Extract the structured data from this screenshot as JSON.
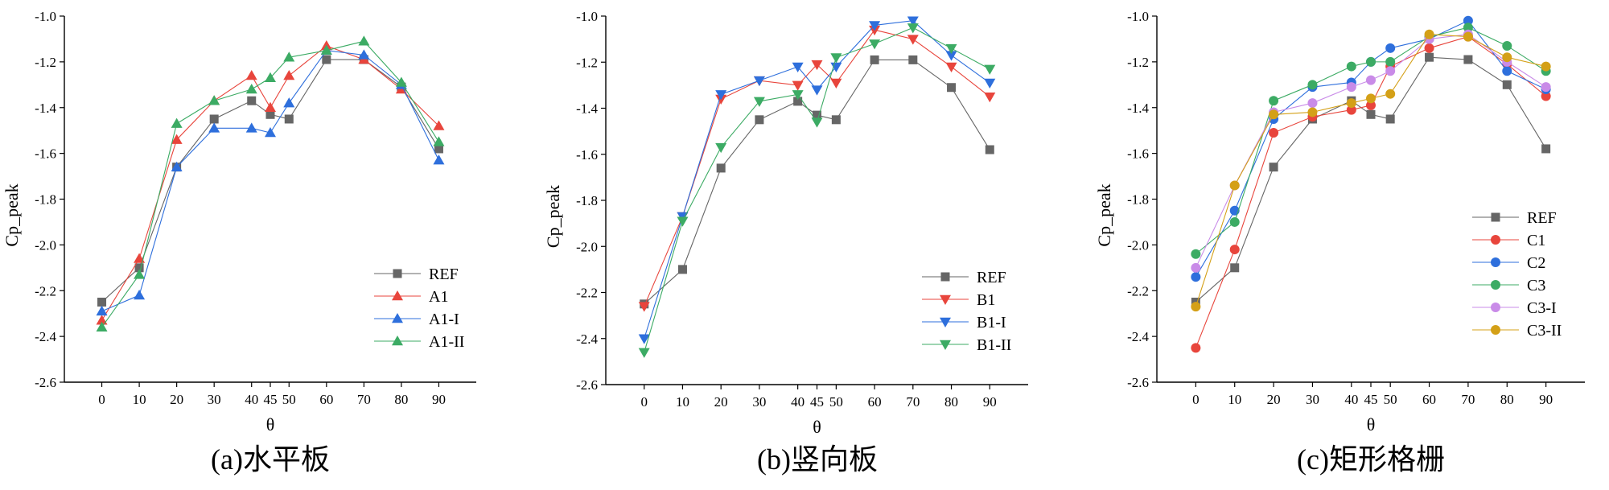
{
  "chart_data": [
    {
      "type": "line",
      "caption": "(a)水平板",
      "xlabel": "θ",
      "ylabel": "Cp_peak",
      "x_ticks": [
        0,
        10,
        20,
        30,
        40,
        45,
        50,
        60,
        70,
        80,
        90
      ],
      "x_ticklabels": [
        "0",
        "10",
        "20",
        "30",
        "40",
        "45",
        "50",
        "60",
        "70",
        "80",
        "90"
      ],
      "y_ticks": [
        -1.0,
        -1.2,
        -1.4,
        -1.6,
        -1.8,
        -2.0,
        -2.2,
        -2.4,
        -2.6
      ],
      "y_ticklabels": [
        "-1.0",
        "-1.2",
        "-1.4",
        "-1.6",
        "-1.8",
        "-2.0",
        "-2.2",
        "-2.4",
        "-2.6"
      ],
      "xlim": [
        -10,
        100
      ],
      "ylim": [
        -2.6,
        -1.0
      ],
      "legend_position": "bottom-right",
      "x": [
        0,
        10,
        20,
        30,
        40,
        45,
        50,
        60,
        70,
        80,
        90
      ],
      "series": [
        {
          "name": "REF",
          "color": "#666666",
          "marker": "square",
          "values": [
            -2.25,
            -2.1,
            -1.66,
            -1.45,
            -1.37,
            -1.43,
            -1.45,
            -1.19,
            -1.19,
            -1.31,
            -1.58
          ]
        },
        {
          "name": "A1",
          "color": "#e8453c",
          "marker": "triangle-up",
          "values": [
            -2.33,
            -2.06,
            -1.54,
            -1.37,
            -1.26,
            -1.4,
            -1.26,
            -1.13,
            -1.19,
            -1.32,
            -1.48
          ]
        },
        {
          "name": "A1-I",
          "color": "#2e6fdc",
          "marker": "triangle-up",
          "values": [
            -2.29,
            -2.22,
            -1.66,
            -1.49,
            -1.49,
            -1.51,
            -1.38,
            -1.15,
            -1.17,
            -1.3,
            -1.63
          ]
        },
        {
          "name": "A1-II",
          "color": "#3cab64",
          "marker": "triangle-up",
          "values": [
            -2.36,
            -2.13,
            -1.47,
            -1.37,
            -1.32,
            -1.27,
            -1.18,
            -1.15,
            -1.11,
            -1.29,
            -1.55
          ]
        }
      ]
    },
    {
      "type": "line",
      "caption": "(b)竖向板",
      "xlabel": "θ",
      "ylabel": "Cp_peak",
      "x_ticks": [
        0,
        10,
        20,
        30,
        40,
        45,
        50,
        60,
        70,
        80,
        90
      ],
      "x_ticklabels": [
        "0",
        "10",
        "20",
        "30",
        "40",
        "45",
        "50",
        "60",
        "70",
        "80",
        "90"
      ],
      "y_ticks": [
        -1.0,
        -1.2,
        -1.4,
        -1.6,
        -1.8,
        -2.0,
        -2.2,
        -2.4,
        -2.6
      ],
      "y_ticklabels": [
        "-1.0",
        "-1.2",
        "-1.4",
        "-1.6",
        "-1.8",
        "-2.0",
        "-2.2",
        "-2.4",
        "-2.6"
      ],
      "xlim": [
        -10,
        100
      ],
      "ylim": [
        -2.6,
        -1.0
      ],
      "legend_position": "bottom-right",
      "x": [
        0,
        10,
        20,
        30,
        40,
        45,
        50,
        60,
        70,
        80,
        90
      ],
      "series": [
        {
          "name": "REF",
          "color": "#666666",
          "marker": "square",
          "values": [
            -2.25,
            -2.1,
            -1.66,
            -1.45,
            -1.37,
            -1.43,
            -1.45,
            -1.19,
            -1.19,
            -1.31,
            -1.58
          ]
        },
        {
          "name": "B1",
          "color": "#e8453c",
          "marker": "triangle-down",
          "values": [
            -2.26,
            -1.87,
            -1.36,
            -1.28,
            -1.3,
            -1.21,
            -1.29,
            -1.06,
            -1.1,
            -1.22,
            -1.35
          ]
        },
        {
          "name": "B1-I",
          "color": "#2e6fdc",
          "marker": "triangle-down",
          "values": [
            -2.4,
            -1.87,
            -1.34,
            -1.28,
            -1.22,
            -1.32,
            -1.22,
            -1.04,
            -1.02,
            -1.17,
            -1.29
          ]
        },
        {
          "name": "B1-II",
          "color": "#3cab64",
          "marker": "triangle-down",
          "values": [
            -2.46,
            -1.89,
            -1.57,
            -1.37,
            -1.34,
            -1.46,
            -1.18,
            -1.12,
            -1.05,
            -1.14,
            -1.23
          ]
        }
      ]
    },
    {
      "type": "line",
      "caption": "(c)矩形格栅",
      "xlabel": "θ",
      "ylabel": "Cp_peak",
      "x_ticks": [
        0,
        10,
        20,
        30,
        40,
        45,
        50,
        60,
        70,
        80,
        90
      ],
      "x_ticklabels": [
        "0",
        "10",
        "20",
        "30",
        "40",
        "45",
        "50",
        "60",
        "70",
        "80",
        "90"
      ],
      "y_ticks": [
        -1.0,
        -1.2,
        -1.4,
        -1.6,
        -1.8,
        -2.0,
        -2.2,
        -2.4,
        -2.6
      ],
      "y_ticklabels": [
        "-1.0",
        "-1.2",
        "-1.4",
        "-1.6",
        "-1.8",
        "-2.0",
        "-2.2",
        "-2.4",
        "-2.6"
      ],
      "xlim": [
        -10,
        100
      ],
      "ylim": [
        -2.6,
        -1.0
      ],
      "legend_position": "bottom-right",
      "x": [
        0,
        10,
        20,
        30,
        40,
        45,
        50,
        60,
        70,
        80,
        90
      ],
      "series": [
        {
          "name": "REF",
          "color": "#666666",
          "marker": "square",
          "values": [
            -2.25,
            -2.1,
            -1.66,
            -1.45,
            -1.37,
            -1.43,
            -1.45,
            -1.18,
            -1.19,
            -1.3,
            -1.58
          ]
        },
        {
          "name": "C1",
          "color": "#e8453c",
          "marker": "circle",
          "values": [
            -2.45,
            -2.02,
            -1.51,
            -1.44,
            -1.41,
            -1.39,
            -1.22,
            -1.14,
            -1.09,
            -1.21,
            -1.35
          ]
        },
        {
          "name": "C2",
          "color": "#2e6fdc",
          "marker": "circle",
          "values": [
            -2.14,
            -1.85,
            -1.45,
            -1.31,
            -1.29,
            -1.2,
            -1.14,
            -1.1,
            -1.02,
            -1.24,
            -1.32
          ]
        },
        {
          "name": "C3",
          "color": "#3cab64",
          "marker": "circle",
          "values": [
            -2.04,
            -1.9,
            -1.37,
            -1.3,
            -1.22,
            -1.2,
            -1.2,
            -1.09,
            -1.05,
            -1.13,
            -1.24
          ]
        },
        {
          "name": "C3-I",
          "color": "#c98be8",
          "marker": "circle",
          "values": [
            -2.1,
            -1.74,
            -1.42,
            -1.38,
            -1.31,
            -1.28,
            -1.24,
            -1.1,
            -1.08,
            -1.2,
            -1.31
          ]
        },
        {
          "name": "C3-II",
          "color": "#d4a017",
          "marker": "circle",
          "values": [
            -2.27,
            -1.74,
            -1.43,
            -1.42,
            -1.38,
            -1.36,
            -1.34,
            -1.08,
            -1.09,
            -1.18,
            -1.22
          ]
        }
      ]
    }
  ]
}
